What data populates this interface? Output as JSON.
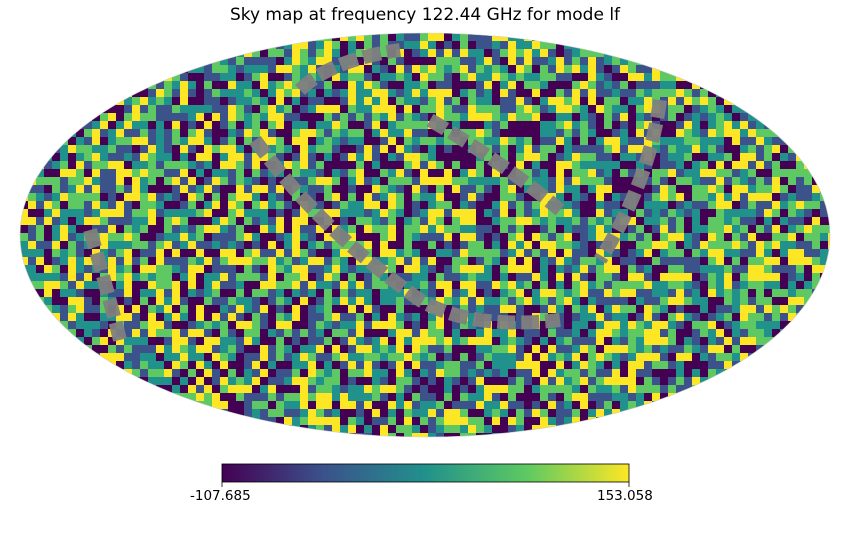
{
  "chart_data": {
    "type": "heatmap",
    "projection": "mollweide",
    "title": "Sky map at frequency 122.44 GHz for mode lf",
    "colormap": "viridis",
    "mask_color": "#808080",
    "colorbar": {
      "orientation": "horizontal",
      "min_label": "-107.685",
      "max_label": "153.058",
      "min": -107.685,
      "max": 153.058
    },
    "colors": [
      "#440154",
      "#3b528b",
      "#21918c",
      "#5ec962",
      "#fde725"
    ]
  }
}
